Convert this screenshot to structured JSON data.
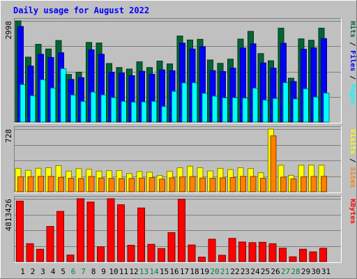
{
  "chart_data": {
    "type": "bar",
    "title": "Daily usage for August 2022",
    "categories": [
      "1",
      "2",
      "3",
      "4",
      "5",
      "6",
      "7",
      "8",
      "9",
      "10",
      "11",
      "12",
      "13",
      "14",
      "15",
      "16",
      "17",
      "18",
      "19",
      "20",
      "21",
      "22",
      "23",
      "24",
      "25",
      "26",
      "27",
      "28",
      "29",
      "30",
      "31"
    ],
    "weekend_days": [
      "6",
      "7",
      "13",
      "14",
      "20",
      "21",
      "27",
      "28"
    ],
    "panels": [
      {
        "id": "hits",
        "max_label": "2998",
        "ylim": [
          0,
          2998
        ],
        "legend": [
          "Pages",
          "Files",
          "Hits"
        ],
        "series": [
          {
            "name": "Hits",
            "color": "#006633",
            "values": [
              2998,
              1925,
              2305,
              2166,
              2418,
              1413,
              1480,
              2360,
              2344,
              1737,
              1617,
              1572,
              1787,
              1617,
              1809,
              1725,
              2551,
              2433,
              2453,
              1841,
              1741,
              1865,
              2460,
              2689,
              2030,
              1817,
              2784,
              1300,
              2467,
              2425,
              2784
            ]
          },
          {
            "name": "Files",
            "color": "#0000FF",
            "values": [
              2833,
              1661,
              2009,
              1915,
              2055,
              1265,
              1317,
              2142,
              2010,
              1479,
              1452,
              1375,
              1506,
              1417,
              1547,
              1520,
              2341,
              2165,
              2236,
              1525,
              1499,
              1599,
              2195,
              2320,
              1753,
              1599,
              2336,
              1200,
              2158,
              2198,
              2475
            ]
          },
          {
            "name": "Pages",
            "color": "#00FFFF",
            "values": [
              1111,
              779,
              1253,
              1005,
              1582,
              800,
              608,
              887,
              804,
              723,
              612,
              590,
              595,
              611,
              459,
              909,
              1160,
              1163,
              851,
              767,
              715,
              720,
              708,
              1002,
              650,
              695,
              1165,
              684,
              985,
              739,
              857
            ]
          }
        ]
      },
      {
        "id": "visits",
        "max_label": "728",
        "ylim": [
          0,
          728
        ],
        "legend": [
          "Sites",
          "Visits"
        ],
        "series": [
          {
            "name": "Visits",
            "color": "#FFFF00",
            "values": [
              272,
              250,
              273,
              279,
              303,
              240,
              269,
              261,
              240,
              245,
              246,
              212,
              235,
              227,
              189,
              238,
              279,
              297,
              280,
              242,
              272,
              258,
              279,
              269,
              222,
              727,
              308,
              191,
              308,
              310,
              308
            ]
          },
          {
            "name": "Sites",
            "color": "#FF8000",
            "values": [
              175,
              175,
              179,
              179,
              168,
              157,
              154,
              178,
              160,
              156,
              154,
              155,
              159,
              165,
              147,
              162,
              173,
              177,
              160,
              157,
              162,
              166,
              179,
              178,
              157,
              649,
              171,
              150,
              174,
              178,
              179
            ]
          }
        ]
      },
      {
        "id": "kbytes",
        "max_label": "4813426",
        "ylim": [
          0,
          4813426
        ],
        "legend": [
          "KBytes"
        ],
        "series": [
          {
            "name": "KBytes",
            "color": "#FF0000",
            "values": [
              4637100,
              1372800,
              945500,
              2692900,
              3846700,
              506600,
              4819500,
              4564600,
              1132800,
              4819500,
              4359900,
              1249200,
              4108900,
              1324400,
              1000300,
              2223700,
              4777700,
              1276300,
              339500,
              1714600,
              485000,
              1779800,
              1499700,
              1452800,
              1479400,
              1369800,
              1025600,
              367700,
              949600,
              743900,
              1023000
            ]
          }
        ]
      }
    ]
  }
}
